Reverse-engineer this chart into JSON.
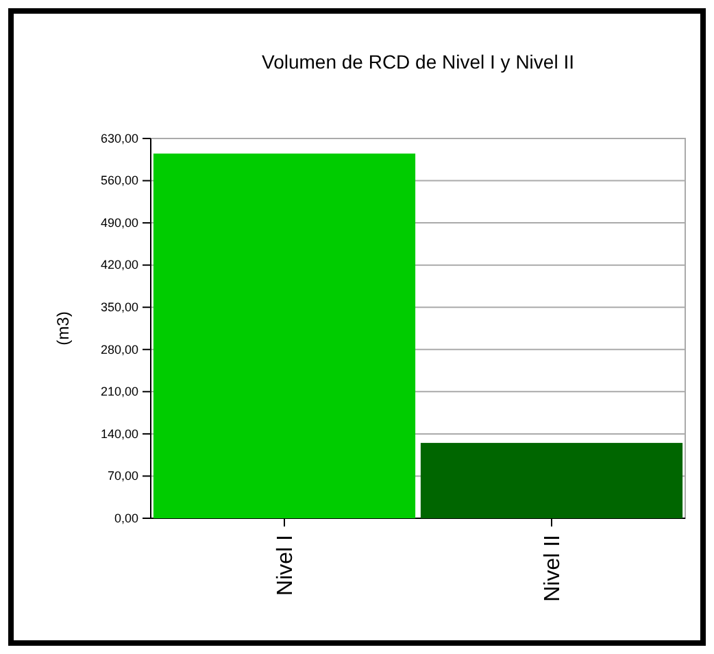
{
  "chart_data": {
    "type": "bar",
    "title": "Volumen de RCD de Nivel I y Nivel II",
    "ylabel": "(m3)",
    "categories": [
      "Nivel I",
      "Nivel II"
    ],
    "values": [
      605,
      125
    ],
    "colors": [
      "#00cc00",
      "#006600"
    ],
    "ylim": [
      0,
      630
    ],
    "yticks": [
      {
        "value": 0,
        "label": "0,00"
      },
      {
        "value": 70,
        "label": "70,00"
      },
      {
        "value": 140,
        "label": "140,00"
      },
      {
        "value": 210,
        "label": "210,00"
      },
      {
        "value": 280,
        "label": "280,00"
      },
      {
        "value": 350,
        "label": "350,00"
      },
      {
        "value": 420,
        "label": "420,00"
      },
      {
        "value": 490,
        "label": "490,00"
      },
      {
        "value": 560,
        "label": "560,00"
      },
      {
        "value": 630,
        "label": "630,00"
      }
    ],
    "grid": "y"
  }
}
